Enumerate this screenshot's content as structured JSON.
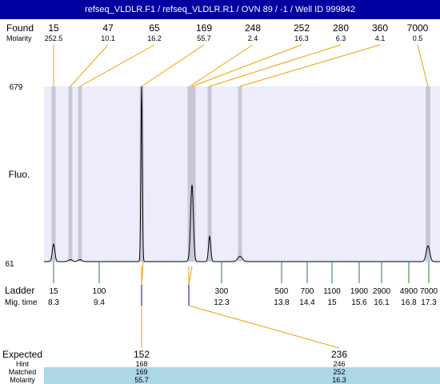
{
  "title": "refseq_VLDLR.F1 / refseq_VLDLR.R1 / OVN 89 / -1 / Well ID 999842",
  "labels": {
    "found": "Found",
    "molarity": "Molarity",
    "fluo": "Fluo.",
    "ladder": "Ladder",
    "mig_time": "Mig. time",
    "expected": "Expected",
    "hint": "Hint",
    "matched": "Matched",
    "molarity_bottom": "Molarity"
  },
  "colors": {
    "title_bg": "#0000a0",
    "plot_bg": "#ececfb",
    "band": "#c8c8da",
    "trace": "#000000",
    "found_line": "#f0a000",
    "ladder_tick": "#2e7d32",
    "row_highlight": "#add8e6"
  },
  "chart_data": {
    "type": "line",
    "title": "refseq_VLDLR.F1 / refseq_VLDLR.R1 / OVN 89 / -1 / Well ID 999842",
    "xlabel": "Mig. time",
    "ylabel": "Fluo.",
    "ylim": [
      61,
      679
    ],
    "y_tick_labels": [
      "679",
      "61"
    ],
    "found_peaks": [
      {
        "size": "15",
        "molarity": "252.5",
        "height": 123
      },
      {
        "size": "47",
        "molarity": "10.1",
        "height": 68
      },
      {
        "size": "65",
        "molarity": "16.2",
        "height": 68
      },
      {
        "size": "169",
        "molarity": "55.7",
        "height": 679
      },
      {
        "size": "248",
        "molarity": "2.4",
        "height": 67
      },
      {
        "size": "252",
        "molarity": "16.3",
        "height": 330
      },
      {
        "size": "280",
        "molarity": "6.3",
        "height": 150
      },
      {
        "size": "360",
        "molarity": "4.1",
        "height": 80
      },
      {
        "size": "7000",
        "molarity": "0.5",
        "height": 117
      }
    ],
    "ladder": [
      {
        "size": "15",
        "time": "8.3"
      },
      {
        "size": "100",
        "time": "9.4"
      },
      {
        "size": "300",
        "time": "12.3"
      },
      {
        "size": "500",
        "time": "13.8"
      },
      {
        "size": "700",
        "time": "14.4"
      },
      {
        "size": "1100",
        "time": "15"
      },
      {
        "size": "1900",
        "time": "15.6"
      },
      {
        "size": "2900",
        "time": "16.1"
      },
      {
        "size": "4900",
        "time": "16.8"
      },
      {
        "size": "7000",
        "time": "17.3"
      }
    ],
    "expected": [
      {
        "expected": "152",
        "hint": "168",
        "matched": "169",
        "molarity": "55.7"
      },
      {
        "expected": "236",
        "hint": "246",
        "matched": "252",
        "molarity": "16.3"
      }
    ]
  }
}
